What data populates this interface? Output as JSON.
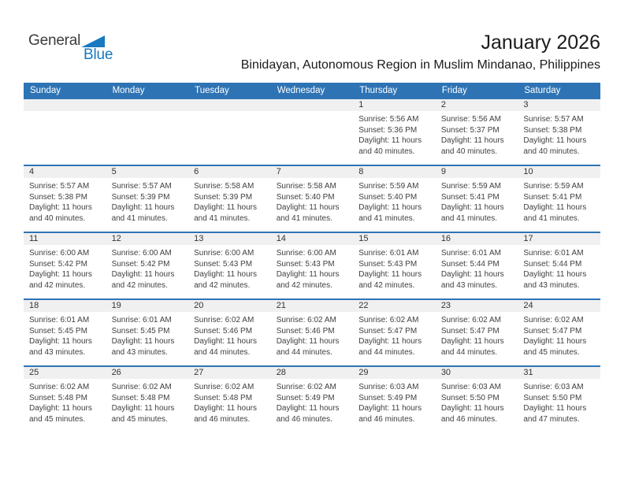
{
  "logo": {
    "part1": "General",
    "part2": "Blue"
  },
  "header": {
    "title": "January 2026",
    "subtitle": "Binidayan, Autonomous Region in Muslim Mindanao, Philippines"
  },
  "colors": {
    "header_blue": "#2e74b5",
    "logo_blue": "#1779bf",
    "band_gray": "#f0f0f0"
  },
  "weekdays": [
    "Sunday",
    "Monday",
    "Tuesday",
    "Wednesday",
    "Thursday",
    "Friday",
    "Saturday"
  ],
  "weeks": [
    {
      "cells": [
        null,
        null,
        null,
        null,
        {
          "day": "1",
          "sunrise": "Sunrise: 5:56 AM",
          "sunset": "Sunset: 5:36 PM",
          "daylight": "Daylight: 11 hours and 40 minutes."
        },
        {
          "day": "2",
          "sunrise": "Sunrise: 5:56 AM",
          "sunset": "Sunset: 5:37 PM",
          "daylight": "Daylight: 11 hours and 40 minutes."
        },
        {
          "day": "3",
          "sunrise": "Sunrise: 5:57 AM",
          "sunset": "Sunset: 5:38 PM",
          "daylight": "Daylight: 11 hours and 40 minutes."
        }
      ]
    },
    {
      "cells": [
        {
          "day": "4",
          "sunrise": "Sunrise: 5:57 AM",
          "sunset": "Sunset: 5:38 PM",
          "daylight": "Daylight: 11 hours and 40 minutes."
        },
        {
          "day": "5",
          "sunrise": "Sunrise: 5:57 AM",
          "sunset": "Sunset: 5:39 PM",
          "daylight": "Daylight: 11 hours and 41 minutes."
        },
        {
          "day": "6",
          "sunrise": "Sunrise: 5:58 AM",
          "sunset": "Sunset: 5:39 PM",
          "daylight": "Daylight: 11 hours and 41 minutes."
        },
        {
          "day": "7",
          "sunrise": "Sunrise: 5:58 AM",
          "sunset": "Sunset: 5:40 PM",
          "daylight": "Daylight: 11 hours and 41 minutes."
        },
        {
          "day": "8",
          "sunrise": "Sunrise: 5:59 AM",
          "sunset": "Sunset: 5:40 PM",
          "daylight": "Daylight: 11 hours and 41 minutes."
        },
        {
          "day": "9",
          "sunrise": "Sunrise: 5:59 AM",
          "sunset": "Sunset: 5:41 PM",
          "daylight": "Daylight: 11 hours and 41 minutes."
        },
        {
          "day": "10",
          "sunrise": "Sunrise: 5:59 AM",
          "sunset": "Sunset: 5:41 PM",
          "daylight": "Daylight: 11 hours and 41 minutes."
        }
      ]
    },
    {
      "cells": [
        {
          "day": "11",
          "sunrise": "Sunrise: 6:00 AM",
          "sunset": "Sunset: 5:42 PM",
          "daylight": "Daylight: 11 hours and 42 minutes."
        },
        {
          "day": "12",
          "sunrise": "Sunrise: 6:00 AM",
          "sunset": "Sunset: 5:42 PM",
          "daylight": "Daylight: 11 hours and 42 minutes."
        },
        {
          "day": "13",
          "sunrise": "Sunrise: 6:00 AM",
          "sunset": "Sunset: 5:43 PM",
          "daylight": "Daylight: 11 hours and 42 minutes."
        },
        {
          "day": "14",
          "sunrise": "Sunrise: 6:00 AM",
          "sunset": "Sunset: 5:43 PM",
          "daylight": "Daylight: 11 hours and 42 minutes."
        },
        {
          "day": "15",
          "sunrise": "Sunrise: 6:01 AM",
          "sunset": "Sunset: 5:43 PM",
          "daylight": "Daylight: 11 hours and 42 minutes."
        },
        {
          "day": "16",
          "sunrise": "Sunrise: 6:01 AM",
          "sunset": "Sunset: 5:44 PM",
          "daylight": "Daylight: 11 hours and 43 minutes."
        },
        {
          "day": "17",
          "sunrise": "Sunrise: 6:01 AM",
          "sunset": "Sunset: 5:44 PM",
          "daylight": "Daylight: 11 hours and 43 minutes."
        }
      ]
    },
    {
      "cells": [
        {
          "day": "18",
          "sunrise": "Sunrise: 6:01 AM",
          "sunset": "Sunset: 5:45 PM",
          "daylight": "Daylight: 11 hours and 43 minutes."
        },
        {
          "day": "19",
          "sunrise": "Sunrise: 6:01 AM",
          "sunset": "Sunset: 5:45 PM",
          "daylight": "Daylight: 11 hours and 43 minutes."
        },
        {
          "day": "20",
          "sunrise": "Sunrise: 6:02 AM",
          "sunset": "Sunset: 5:46 PM",
          "daylight": "Daylight: 11 hours and 44 minutes."
        },
        {
          "day": "21",
          "sunrise": "Sunrise: 6:02 AM",
          "sunset": "Sunset: 5:46 PM",
          "daylight": "Daylight: 11 hours and 44 minutes."
        },
        {
          "day": "22",
          "sunrise": "Sunrise: 6:02 AM",
          "sunset": "Sunset: 5:47 PM",
          "daylight": "Daylight: 11 hours and 44 minutes."
        },
        {
          "day": "23",
          "sunrise": "Sunrise: 6:02 AM",
          "sunset": "Sunset: 5:47 PM",
          "daylight": "Daylight: 11 hours and 44 minutes."
        },
        {
          "day": "24",
          "sunrise": "Sunrise: 6:02 AM",
          "sunset": "Sunset: 5:47 PM",
          "daylight": "Daylight: 11 hours and 45 minutes."
        }
      ]
    },
    {
      "cells": [
        {
          "day": "25",
          "sunrise": "Sunrise: 6:02 AM",
          "sunset": "Sunset: 5:48 PM",
          "daylight": "Daylight: 11 hours and 45 minutes."
        },
        {
          "day": "26",
          "sunrise": "Sunrise: 6:02 AM",
          "sunset": "Sunset: 5:48 PM",
          "daylight": "Daylight: 11 hours and 45 minutes."
        },
        {
          "day": "27",
          "sunrise": "Sunrise: 6:02 AM",
          "sunset": "Sunset: 5:48 PM",
          "daylight": "Daylight: 11 hours and 46 minutes."
        },
        {
          "day": "28",
          "sunrise": "Sunrise: 6:02 AM",
          "sunset": "Sunset: 5:49 PM",
          "daylight": "Daylight: 11 hours and 46 minutes."
        },
        {
          "day": "29",
          "sunrise": "Sunrise: 6:03 AM",
          "sunset": "Sunset: 5:49 PM",
          "daylight": "Daylight: 11 hours and 46 minutes."
        },
        {
          "day": "30",
          "sunrise": "Sunrise: 6:03 AM",
          "sunset": "Sunset: 5:50 PM",
          "daylight": "Daylight: 11 hours and 46 minutes."
        },
        {
          "day": "31",
          "sunrise": "Sunrise: 6:03 AM",
          "sunset": "Sunset: 5:50 PM",
          "daylight": "Daylight: 11 hours and 47 minutes."
        }
      ]
    }
  ]
}
